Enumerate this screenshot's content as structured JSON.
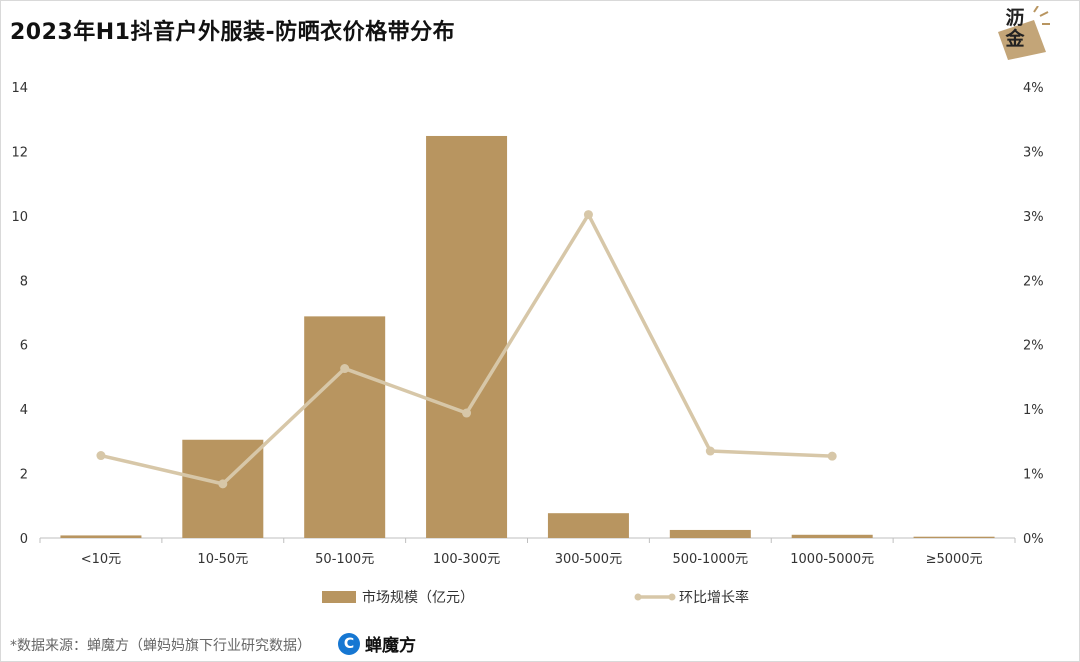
{
  "page": {
    "title": "2023年H1抖音户外服装-防晒衣价格带分布",
    "logo_text": "沥金",
    "footer_source": "*数据来源：蝉魔方（蝉妈妈旗下行业研究数据）",
    "footer_brand": "蝉魔方",
    "footer_brand_icon": "C"
  },
  "colors": {
    "bar": "#b89560",
    "line": "#d7c7a8",
    "axis": "#bfbfbf",
    "logo": "#b89560"
  },
  "chart_data": {
    "type": "bar",
    "title": "2023年H1抖音户外服装-防晒衣价格带分布",
    "categories": [
      "<10元",
      "10-50元",
      "50-100元",
      "100-300元",
      "300-500元",
      "500-1000元",
      "1000-5000元",
      "≥5000元"
    ],
    "series": [
      {
        "name": "市场规模（亿元）",
        "type": "bar",
        "axis": "left",
        "values": [
          0.08,
          3.05,
          6.88,
          12.48,
          0.77,
          0.25,
          0.1,
          0.04
        ]
      },
      {
        "name": "环比增长率",
        "type": "line",
        "axis": "right",
        "values": [
          0.0128,
          0.0084,
          0.0263,
          0.0194,
          0.0502,
          0.0135,
          0.0127,
          null
        ]
      }
    ],
    "left_axis": {
      "range": [
        0,
        14
      ],
      "ticks": [
        "0",
        "2",
        "4",
        "6",
        "8",
        "10",
        "12",
        "14"
      ]
    },
    "right_axis": {
      "range": [
        0,
        0.07
      ],
      "ticks": [
        "0%",
        "1%",
        "1%",
        "2%",
        "2%",
        "3%",
        "3%",
        "4%"
      ]
    },
    "grid": false,
    "legend_position": "bottom"
  }
}
